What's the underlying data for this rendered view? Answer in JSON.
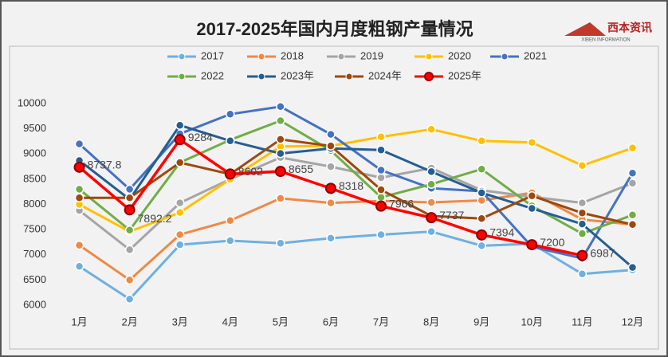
{
  "chart_data": {
    "type": "line",
    "title": "2017-2025年国内月度粗钢产量情况",
    "logo": {
      "name": "西本资讯",
      "subtitle": "XIBEN INFORMATION"
    },
    "categories": [
      "1月",
      "2月",
      "3月",
      "4月",
      "5月",
      "6月",
      "7月",
      "8月",
      "9月",
      "10月",
      "11月",
      "12月"
    ],
    "ylim": [
      6000,
      10000
    ],
    "yticks": [
      6000,
      6500,
      7000,
      7500,
      8000,
      8500,
      9000,
      9500,
      10000
    ],
    "grid": false,
    "legend": "top",
    "series": [
      {
        "name": "2017",
        "color": "#6fb0e0",
        "values": [
          6770,
          6120,
          7200,
          7280,
          7230,
          7330,
          7400,
          7460,
          7180,
          7220,
          6620,
          6700
        ]
      },
      {
        "name": "2018",
        "color": "#ed8a45",
        "values": [
          7190,
          6500,
          7400,
          7680,
          8120,
          8030,
          8070,
          8040,
          8080,
          8230,
          7700,
          7600
        ]
      },
      {
        "name": "2019",
        "color": "#a5a5a5",
        "values": [
          7880,
          7100,
          8030,
          8500,
          8930,
          8750,
          8530,
          8720,
          8280,
          8150,
          8030,
          8420
        ]
      },
      {
        "name": "2020",
        "color": "#ffc000",
        "values": [
          8000,
          7460,
          7840,
          8500,
          9150,
          9160,
          9340,
          9490,
          9260,
          9230,
          8770,
          9120
        ]
      },
      {
        "name": "2021",
        "color": "#4472c4",
        "values": [
          9200,
          8300,
          9400,
          9790,
          9940,
          9390,
          8680,
          8320,
          8260,
          7160,
          6930,
          8620
        ]
      },
      {
        "name": "2022",
        "color": "#70ad47",
        "values": [
          8300,
          7490,
          8830,
          9280,
          9660,
          9070,
          8140,
          8400,
          8700,
          7970,
          7420,
          7790
        ]
      },
      {
        "name": "2023年",
        "color": "#255e91",
        "values": [
          8870,
          8100,
          9570,
          9260,
          9010,
          9110,
          9080,
          8650,
          8230,
          7920,
          7610,
          6750
        ]
      },
      {
        "name": "2024年",
        "color": "#9e480e",
        "values": [
          8130,
          8130,
          8830,
          8600,
          9290,
          9160,
          8290,
          7770,
          7720,
          8170,
          7830,
          7600
        ]
      },
      {
        "name": "2025年",
        "color": "#ff0000",
        "values": [
          8737.8,
          7892.2,
          9284,
          8602,
          8655,
          8318,
          7966,
          7737,
          7394,
          7200,
          6987,
          null
        ]
      }
    ]
  }
}
